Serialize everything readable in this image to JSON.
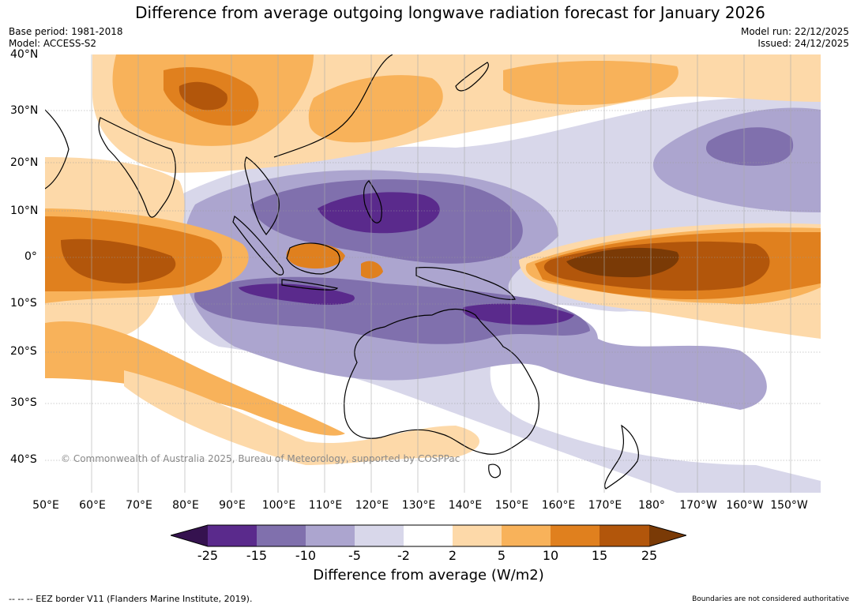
{
  "title": "Difference from average outgoing longwave radiation forecast for January 2026",
  "meta_left": {
    "base_period": "Base period: 1981-2018",
    "model": "Model: ACCESS-S2"
  },
  "meta_right": {
    "model_run": "Model run: 22/12/2025",
    "issued": "Issued: 24/12/2025"
  },
  "map": {
    "lat_labels": [
      "40°N",
      "30°N",
      "20°N",
      "10°N",
      "0°",
      "10°S",
      "20°S",
      "30°S",
      "40°S"
    ],
    "lon_labels": [
      "50°E",
      "60°E",
      "70°E",
      "80°E",
      "90°E",
      "100°E",
      "110°E",
      "120°E",
      "130°E",
      "140°E",
      "150°E",
      "160°E",
      "170°E",
      "180°",
      "170°W",
      "160°W",
      "150°W"
    ],
    "copyright": "© Commonwealth of Australia 2025, Bureau of Meteorology, supported by COSPPac"
  },
  "colorbar": {
    "ticks": [
      "-25",
      "-15",
      "-10",
      "-5",
      "-2",
      "2",
      "5",
      "10",
      "15",
      "25"
    ],
    "colors": [
      "#35124f",
      "#5a2a8c",
      "#8070ad",
      "#aca5cf",
      "#d8d7ea",
      "#ffffff",
      "#fdd9a9",
      "#f8b25a",
      "#e0801e",
      "#b2560b",
      "#7a3a06"
    ],
    "title": "Difference from average (W/m2)"
  },
  "footer": {
    "eez": "--  --  -- EEZ border V11 (Flanders Marine Institute, 2019).",
    "boundaries": "Boundaries are not considered authoritative"
  }
}
